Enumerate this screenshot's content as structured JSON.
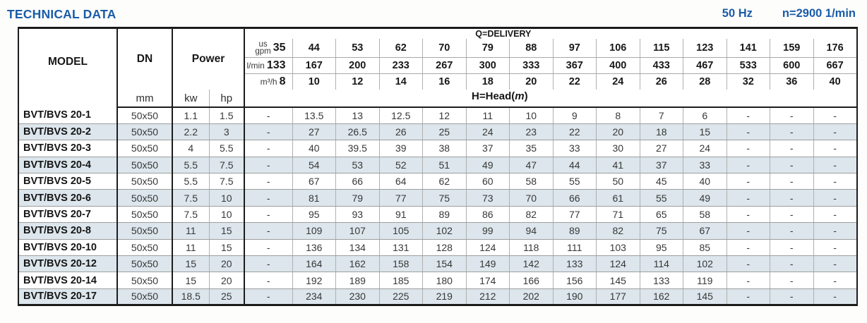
{
  "header": {
    "title": "TECHNICAL DATA",
    "frequency": "50 Hz",
    "rotation_speed": "n=2900 1/min"
  },
  "table": {
    "columns": {
      "model": "MODEL",
      "dn": "DN",
      "dn_unit": "mm",
      "power": "Power",
      "power_unit_kw": "kw",
      "power_unit_hp": "hp"
    },
    "delivery": {
      "title": "Q=DELIVERY",
      "head_label": {
        "prefix": "H=Head(",
        "symbol": "m",
        "suffix": ")"
      },
      "unit_rows": [
        {
          "label_top": "us",
          "label": "gpm",
          "values": [
            "35",
            "44",
            "53",
            "62",
            "70",
            "79",
            "88",
            "97",
            "106",
            "115",
            "123",
            "141",
            "159",
            "176"
          ]
        },
        {
          "label": "l/min",
          "values": [
            "133",
            "167",
            "200",
            "233",
            "267",
            "300",
            "333",
            "367",
            "400",
            "433",
            "467",
            "533",
            "600",
            "667"
          ]
        },
        {
          "label": "m³/h",
          "values": [
            "8",
            "10",
            "12",
            "14",
            "16",
            "18",
            "20",
            "22",
            "24",
            "26",
            "28",
            "32",
            "36",
            "40"
          ]
        }
      ]
    },
    "rows": [
      {
        "model": "BVT/BVS 20-1",
        "dn": "50x50",
        "kw": "1.1",
        "hp": "1.5",
        "heads": [
          "-",
          "13.5",
          "13",
          "12.5",
          "12",
          "11",
          "10",
          "9",
          "8",
          "7",
          "6",
          "-",
          "-",
          "-"
        ]
      },
      {
        "model": "BVT/BVS 20-2",
        "dn": "50x50",
        "kw": "2.2",
        "hp": "3",
        "heads": [
          "-",
          "27",
          "26.5",
          "26",
          "25",
          "24",
          "23",
          "22",
          "20",
          "18",
          "15",
          "-",
          "-",
          "-"
        ]
      },
      {
        "model": "BVT/BVS 20-3",
        "dn": "50x50",
        "kw": "4",
        "hp": "5.5",
        "heads": [
          "-",
          "40",
          "39.5",
          "39",
          "38",
          "37",
          "35",
          "33",
          "30",
          "27",
          "24",
          "-",
          "-",
          "-"
        ]
      },
      {
        "model": "BVT/BVS 20-4",
        "dn": "50x50",
        "kw": "5.5",
        "hp": "7.5",
        "heads": [
          "-",
          "54",
          "53",
          "52",
          "51",
          "49",
          "47",
          "44",
          "41",
          "37",
          "33",
          "-",
          "-",
          "-"
        ]
      },
      {
        "model": "BVT/BVS 20-5",
        "dn": "50x50",
        "kw": "5.5",
        "hp": "7.5",
        "heads": [
          "-",
          "67",
          "66",
          "64",
          "62",
          "60",
          "58",
          "55",
          "50",
          "45",
          "40",
          "-",
          "-",
          "-"
        ]
      },
      {
        "model": "BVT/BVS 20-6",
        "dn": "50x50",
        "kw": "7.5",
        "hp": "10",
        "heads": [
          "-",
          "81",
          "79",
          "77",
          "75",
          "73",
          "70",
          "66",
          "61",
          "55",
          "49",
          "-",
          "-",
          "-"
        ]
      },
      {
        "model": "BVT/BVS 20-7",
        "dn": "50x50",
        "kw": "7.5",
        "hp": "10",
        "heads": [
          "-",
          "95",
          "93",
          "91",
          "89",
          "86",
          "82",
          "77",
          "71",
          "65",
          "58",
          "-",
          "-",
          "-"
        ]
      },
      {
        "model": "BVT/BVS 20-8",
        "dn": "50x50",
        "kw": "11",
        "hp": "15",
        "heads": [
          "-",
          "109",
          "107",
          "105",
          "102",
          "99",
          "94",
          "89",
          "82",
          "75",
          "67",
          "-",
          "-",
          "-"
        ]
      },
      {
        "model": "BVT/BVS 20-10",
        "dn": "50x50",
        "kw": "11",
        "hp": "15",
        "heads": [
          "-",
          "136",
          "134",
          "131",
          "128",
          "124",
          "118",
          "111",
          "103",
          "95",
          "85",
          "-",
          "-",
          "-"
        ]
      },
      {
        "model": "BVT/BVS 20-12",
        "dn": "50x50",
        "kw": "15",
        "hp": "20",
        "heads": [
          "-",
          "164",
          "162",
          "158",
          "154",
          "149",
          "142",
          "133",
          "124",
          "114",
          "102",
          "-",
          "-",
          "-"
        ]
      },
      {
        "model": "BVT/BVS 20-14",
        "dn": "50x50",
        "kw": "15",
        "hp": "20",
        "heads": [
          "-",
          "192",
          "189",
          "185",
          "180",
          "174",
          "166",
          "156",
          "145",
          "133",
          "119",
          "-",
          "-",
          "-"
        ]
      },
      {
        "model": "BVT/BVS 20-17",
        "dn": "50x50",
        "kw": "18.5",
        "hp": "25",
        "heads": [
          "-",
          "234",
          "230",
          "225",
          "219",
          "212",
          "202",
          "190",
          "177",
          "162",
          "145",
          "-",
          "-",
          "-"
        ]
      }
    ]
  }
}
